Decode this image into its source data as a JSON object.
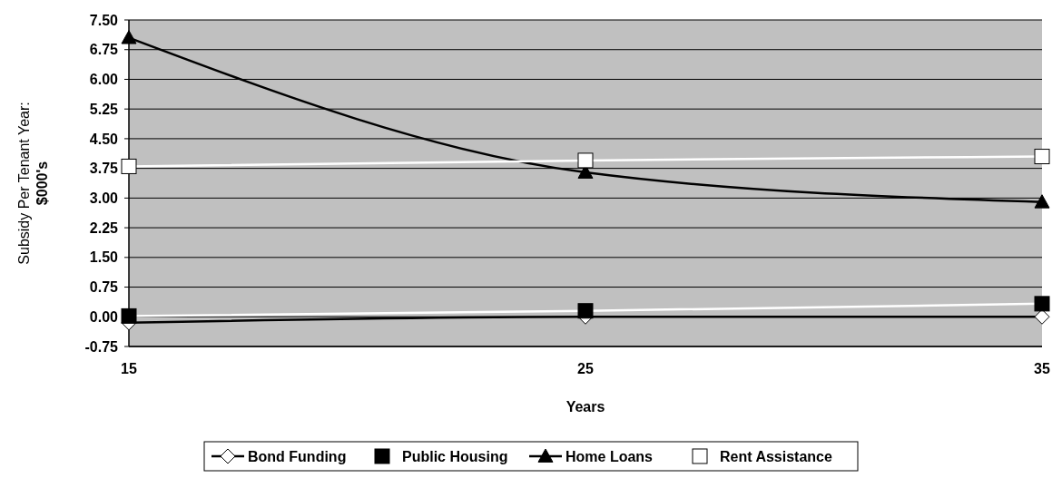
{
  "chart_data": {
    "type": "line",
    "xlabel": "Years",
    "ylabel": "Subsidy Per Tenant Year:\n$000's",
    "categories": [
      "15",
      "25",
      "35"
    ],
    "series": [
      {
        "name": "Bond Funding",
        "color": "#000000",
        "marker": "diamond",
        "values": [
          -0.15,
          0.0,
          0.0
        ]
      },
      {
        "name": "Public Housing",
        "color": "#ffffff",
        "marker": "square",
        "values": [
          0.02,
          0.15,
          0.33
        ]
      },
      {
        "name": "Home Loans",
        "color": "#000000",
        "marker": "triangle",
        "values": [
          7.05,
          3.65,
          2.9
        ]
      },
      {
        "name": "Rent Assistance",
        "color": "#ffffff",
        "marker": "square",
        "values": [
          3.8,
          3.95,
          4.05
        ]
      }
    ],
    "ylim": [
      -0.75,
      7.5
    ],
    "yticks": [
      {
        "value": -0.75,
        "label": "-0.75"
      },
      {
        "value": 0,
        "label": "0.00"
      },
      {
        "value": 0.75,
        "label": "0.75"
      },
      {
        "value": 1.5,
        "label": "1.50"
      },
      {
        "value": 2.25,
        "label": "2.25"
      },
      {
        "value": 3,
        "label": "3.00"
      },
      {
        "value": 3.75,
        "label": "3.75"
      },
      {
        "value": 4.5,
        "label": "4.50"
      },
      {
        "value": 5.25,
        "label": "5.25"
      },
      {
        "value": 6,
        "label": "6.00"
      },
      {
        "value": 6.75,
        "label": "6.75"
      },
      {
        "value": 7.5,
        "label": "7.50"
      }
    ],
    "grid": "y",
    "legend": "bottom"
  }
}
